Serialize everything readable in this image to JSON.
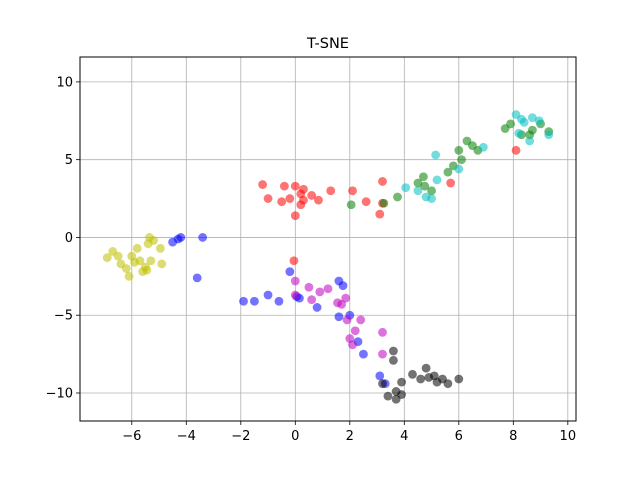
{
  "chart_data": {
    "type": "scatter",
    "title": "T-SNE",
    "xlabel": "",
    "ylabel": "",
    "xlim": [
      -7.9,
      10.3
    ],
    "ylim": [
      -11.8,
      11.6
    ],
    "xticks": [
      -6,
      -4,
      -2,
      0,
      2,
      4,
      6,
      8,
      10
    ],
    "yticks": [
      -10,
      -5,
      0,
      5,
      10
    ],
    "xtick_labels": [
      "−6",
      "−4",
      "−2",
      "0",
      "2",
      "4",
      "6",
      "8",
      "10"
    ],
    "ytick_labels": [
      "−10",
      "−5",
      "0",
      "5",
      "10"
    ],
    "grid": true,
    "marker_opacity": 0.55,
    "series": [
      {
        "color": "#bfbf00",
        "points": [
          [
            -6.9,
            -1.3
          ],
          [
            -6.7,
            -0.9
          ],
          [
            -6.5,
            -1.2
          ],
          [
            -6.4,
            -1.7
          ],
          [
            -6.2,
            -2.0
          ],
          [
            -6.1,
            -2.5
          ],
          [
            -6.0,
            -1.2
          ],
          [
            -5.9,
            -1.6
          ],
          [
            -5.8,
            -0.7
          ],
          [
            -5.7,
            -1.5
          ],
          [
            -5.6,
            -2.2
          ],
          [
            -5.5,
            -1.9
          ],
          [
            -5.4,
            -0.4
          ],
          [
            -5.3,
            -1.5
          ],
          [
            -5.35,
            0.0
          ],
          [
            -5.2,
            -0.2
          ],
          [
            -4.95,
            -0.7
          ],
          [
            -4.9,
            -1.7
          ],
          [
            -5.45,
            -2.1
          ]
        ]
      },
      {
        "color": "#0000ff",
        "points": [
          [
            -4.5,
            -0.3
          ],
          [
            -4.3,
            -0.1
          ],
          [
            -4.2,
            0.0
          ],
          [
            -3.4,
            0.0
          ],
          [
            -3.6,
            -2.6
          ],
          [
            -1.9,
            -4.1
          ],
          [
            -1.5,
            -4.1
          ],
          [
            -1.0,
            -3.7
          ],
          [
            -0.6,
            -4.1
          ],
          [
            -0.2,
            -2.2
          ],
          [
            0.05,
            -3.8
          ],
          [
            0.15,
            -3.9
          ],
          [
            0.8,
            -4.5
          ],
          [
            1.6,
            -2.8
          ],
          [
            1.75,
            -3.1
          ],
          [
            1.6,
            -5.1
          ],
          [
            2.0,
            -5.0
          ],
          [
            2.3,
            -6.7
          ],
          [
            2.5,
            -7.5
          ],
          [
            3.1,
            -8.9
          ],
          [
            3.3,
            -9.4
          ]
        ]
      },
      {
        "color": "#bf00bf",
        "points": [
          [
            0.0,
            -2.8
          ],
          [
            0.0,
            -3.7
          ],
          [
            0.5,
            -3.2
          ],
          [
            0.6,
            -4.0
          ],
          [
            0.9,
            -3.5
          ],
          [
            1.2,
            -3.3
          ],
          [
            1.55,
            -4.2
          ],
          [
            1.7,
            -4.3
          ],
          [
            1.85,
            -3.9
          ],
          [
            1.9,
            -5.3
          ],
          [
            2.0,
            -6.5
          ],
          [
            2.1,
            -6.9
          ],
          [
            2.2,
            -6.0
          ],
          [
            2.4,
            -5.3
          ],
          [
            3.2,
            -6.1
          ],
          [
            3.2,
            -7.5
          ]
        ]
      },
      {
        "color": "#000000",
        "points": [
          [
            3.2,
            -9.4
          ],
          [
            3.4,
            -10.2
          ],
          [
            3.6,
            -7.3
          ],
          [
            3.6,
            -7.9
          ],
          [
            3.7,
            -10.4
          ],
          [
            3.9,
            -9.3
          ],
          [
            3.7,
            -9.9
          ],
          [
            3.9,
            -10.1
          ],
          [
            4.3,
            -8.8
          ],
          [
            4.6,
            -9.1
          ],
          [
            4.8,
            -8.4
          ],
          [
            4.9,
            -9.0
          ],
          [
            5.1,
            -8.9
          ],
          [
            5.2,
            -9.3
          ],
          [
            5.4,
            -9.1
          ],
          [
            5.6,
            -9.4
          ],
          [
            6.0,
            -9.1
          ]
        ]
      },
      {
        "color": "#ff0000",
        "points": [
          [
            -1.2,
            3.4
          ],
          [
            -1.0,
            2.5
          ],
          [
            -0.5,
            2.3
          ],
          [
            -0.4,
            3.3
          ],
          [
            -0.2,
            2.5
          ],
          [
            0.0,
            3.3
          ],
          [
            0.0,
            1.4
          ],
          [
            0.2,
            2.8
          ],
          [
            0.2,
            2.1
          ],
          [
            0.3,
            3.1
          ],
          [
            0.3,
            2.4
          ],
          [
            0.6,
            2.7
          ],
          [
            0.85,
            2.4
          ],
          [
            1.3,
            3.0
          ],
          [
            2.1,
            3.0
          ],
          [
            2.6,
            2.3
          ],
          [
            3.2,
            3.6
          ],
          [
            3.2,
            2.2
          ],
          [
            3.1,
            1.5
          ],
          [
            -0.05,
            -1.5
          ],
          [
            5.7,
            3.5
          ],
          [
            8.1,
            5.6
          ]
        ]
      },
      {
        "color": "#008000",
        "points": [
          [
            2.05,
            2.1
          ],
          [
            3.25,
            2.2
          ],
          [
            3.75,
            2.6
          ],
          [
            4.5,
            3.5
          ],
          [
            4.7,
            3.9
          ],
          [
            4.75,
            3.3
          ],
          [
            5.0,
            3.0
          ],
          [
            5.6,
            4.2
          ],
          [
            5.8,
            4.6
          ],
          [
            6.0,
            5.6
          ],
          [
            6.1,
            5.0
          ],
          [
            6.3,
            6.2
          ],
          [
            6.5,
            5.9
          ],
          [
            6.7,
            5.6
          ],
          [
            7.7,
            7.0
          ],
          [
            7.9,
            7.3
          ],
          [
            8.3,
            6.6
          ],
          [
            8.6,
            6.6
          ],
          [
            8.7,
            6.9
          ],
          [
            9.0,
            7.3
          ],
          [
            9.3,
            6.8
          ]
        ]
      },
      {
        "color": "#00bfbf",
        "points": [
          [
            4.05,
            3.2
          ],
          [
            4.5,
            3.0
          ],
          [
            4.8,
            2.6
          ],
          [
            5.0,
            2.5
          ],
          [
            5.15,
            5.3
          ],
          [
            5.2,
            3.7
          ],
          [
            6.0,
            4.4
          ],
          [
            6.9,
            5.8
          ],
          [
            8.1,
            7.9
          ],
          [
            8.2,
            6.7
          ],
          [
            8.3,
            7.6
          ],
          [
            8.4,
            7.4
          ],
          [
            8.6,
            6.2
          ],
          [
            8.7,
            7.7
          ],
          [
            8.95,
            7.5
          ],
          [
            9.3,
            6.6
          ]
        ]
      }
    ]
  }
}
